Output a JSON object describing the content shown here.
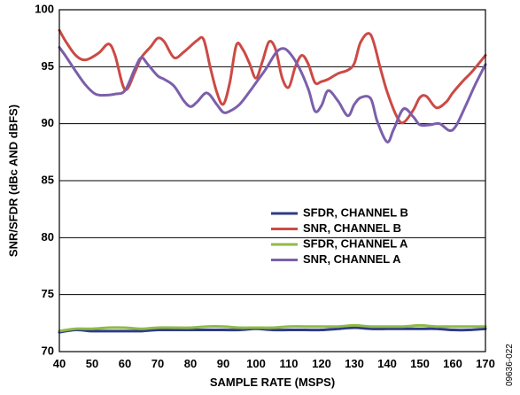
{
  "figure_id": "09636-022",
  "colors": {
    "sfdr_b": "#2e3b86",
    "snr_b": "#cc4a45",
    "sfdr_a": "#8fba4a",
    "snr_a": "#7b5fab"
  },
  "chart_data": {
    "type": "line",
    "title": "",
    "xlabel": "SAMPLE RATE (MSPS)",
    "ylabel": "SNR/SFDR (dBc AND dBFS)",
    "xlim": [
      40,
      170
    ],
    "ylim": [
      70,
      100
    ],
    "xticks": [
      40,
      50,
      60,
      70,
      80,
      90,
      100,
      110,
      120,
      130,
      140,
      150,
      160,
      170
    ],
    "yticks": [
      70,
      75,
      80,
      85,
      90,
      95,
      100
    ],
    "grid": "horizontal",
    "legend_position": "center-right",
    "series": [
      {
        "name": "SFDR, CHANNEL B",
        "color_key": "sfdr_b",
        "x": [
          40,
          45,
          50,
          55,
          60,
          65,
          70,
          75,
          80,
          85,
          90,
          95,
          100,
          105,
          110,
          115,
          120,
          125,
          130,
          135,
          140,
          145,
          150,
          155,
          160,
          165,
          170
        ],
        "y": [
          71.7,
          71.9,
          71.8,
          71.8,
          71.8,
          71.8,
          71.9,
          71.9,
          71.9,
          71.9,
          71.9,
          71.9,
          72.0,
          71.9,
          71.9,
          71.9,
          71.9,
          72.0,
          72.1,
          72.0,
          72.0,
          72.0,
          72.0,
          72.0,
          71.9,
          71.9,
          72.0
        ]
      },
      {
        "name": "SNR, CHANNEL B",
        "color_key": "snr_b",
        "x": [
          40,
          42,
          45,
          48,
          52,
          55,
          57,
          60,
          63,
          65,
          68,
          70,
          72,
          75,
          78,
          82,
          84,
          86,
          88,
          90,
          92,
          94,
          96,
          98,
          100,
          102,
          104,
          106,
          108,
          110,
          112,
          114,
          116,
          118,
          120,
          122,
          125,
          128,
          130,
          132,
          135,
          138,
          140,
          143,
          145,
          148,
          150,
          152,
          155,
          158,
          160,
          163,
          166,
          170
        ],
        "y": [
          98.2,
          97.2,
          96.0,
          95.6,
          96.2,
          97.0,
          96.0,
          93.0,
          94.5,
          95.8,
          96.8,
          97.5,
          97.2,
          95.8,
          96.3,
          97.3,
          97.4,
          95.0,
          92.8,
          91.7,
          93.6,
          96.9,
          96.5,
          95.3,
          94.0,
          95.5,
          97.2,
          96.5,
          94.0,
          93.2,
          95.0,
          96.0,
          95.2,
          93.6,
          93.7,
          93.9,
          94.4,
          94.7,
          95.3,
          97.2,
          97.8,
          94.8,
          92.8,
          90.6,
          90.1,
          91.2,
          92.3,
          92.4,
          91.4,
          91.9,
          92.7,
          93.7,
          94.6,
          96.0
        ]
      },
      {
        "name": "SFDR, CHANNEL A",
        "color_key": "sfdr_a",
        "x": [
          40,
          45,
          50,
          55,
          60,
          65,
          70,
          75,
          80,
          85,
          90,
          95,
          100,
          105,
          110,
          115,
          120,
          125,
          130,
          135,
          140,
          145,
          150,
          155,
          160,
          165,
          170
        ],
        "y": [
          71.8,
          72.0,
          72.0,
          72.1,
          72.1,
          72.0,
          72.1,
          72.1,
          72.1,
          72.2,
          72.2,
          72.1,
          72.1,
          72.1,
          72.2,
          72.2,
          72.2,
          72.2,
          72.3,
          72.2,
          72.2,
          72.2,
          72.3,
          72.2,
          72.2,
          72.2,
          72.2
        ]
      },
      {
        "name": "SNR, CHANNEL A",
        "color_key": "snr_a",
        "x": [
          40,
          42,
          45,
          48,
          51,
          54,
          57,
          60,
          63,
          65,
          67,
          70,
          72,
          75,
          78,
          80,
          82,
          85,
          88,
          90,
          92,
          95,
          98,
          100,
          103,
          106,
          108,
          110,
          113,
          116,
          118,
          120,
          122,
          125,
          128,
          130,
          132,
          135,
          137,
          140,
          142,
          145,
          148,
          150,
          153,
          156,
          159,
          161,
          164,
          167,
          170
        ],
        "y": [
          96.7,
          95.9,
          94.6,
          93.4,
          92.6,
          92.5,
          92.6,
          92.9,
          94.8,
          95.8,
          95.2,
          94.2,
          93.9,
          93.3,
          92.0,
          91.5,
          91.9,
          92.7,
          91.7,
          91.0,
          91.1,
          91.7,
          92.8,
          93.6,
          94.8,
          96.2,
          96.6,
          96.3,
          95.0,
          93.0,
          91.1,
          91.6,
          92.9,
          92.0,
          90.7,
          91.7,
          92.3,
          92.2,
          90.2,
          88.4,
          89.5,
          91.3,
          90.6,
          89.9,
          89.9,
          90.0,
          89.4,
          89.8,
          91.6,
          93.5,
          95.2
        ]
      }
    ]
  }
}
